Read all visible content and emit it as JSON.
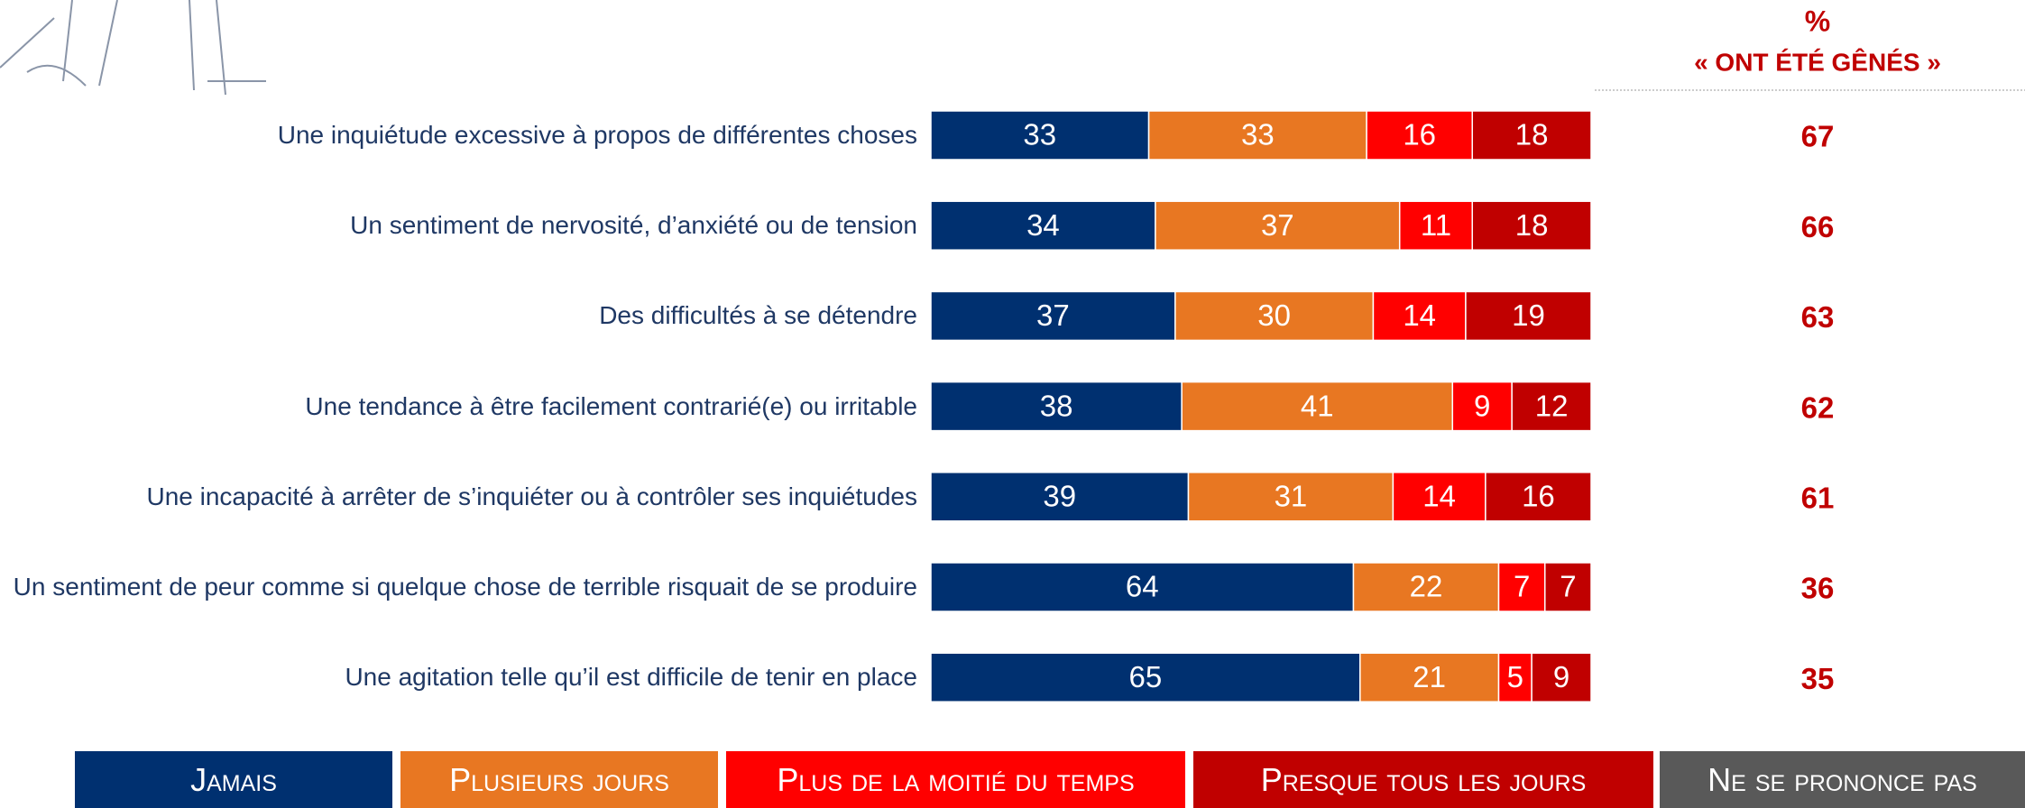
{
  "chart_data": {
    "type": "stacked-bar",
    "categories": [
      "Une inquiétude excessive à propos de différentes choses",
      "Un sentiment de nervosité, d’anxiété ou de tension",
      "Des difficultés à se détendre",
      "Une tendance à être facilement contrarié(e) ou irritable",
      "Une incapacité à arrêter de s’inquiéter ou à contrôler ses inquiétudes",
      "Un sentiment de peur comme si quelque chose de terrible risquait de se produire",
      "Une agitation telle qu’il est difficile de tenir en place"
    ],
    "series": [
      {
        "name": "Jamais",
        "color": "#003070",
        "values": [
          33,
          34,
          37,
          38,
          39,
          64,
          65
        ]
      },
      {
        "name": "Plusieurs jours",
        "color": "#e87722",
        "values": [
          33,
          37,
          30,
          41,
          31,
          22,
          21
        ]
      },
      {
        "name": "Plus de la moitié du temps",
        "color": "#ff0000",
        "values": [
          16,
          11,
          14,
          9,
          14,
          7,
          5
        ]
      },
      {
        "name": "Presque tous les jours",
        "color": "#c00000",
        "values": [
          18,
          18,
          19,
          12,
          16,
          7,
          9
        ]
      },
      {
        "name": "Ne se prononce pas",
        "color": "#595959",
        "values": [
          null,
          null,
          null,
          null,
          null,
          null,
          null
        ]
      }
    ],
    "xlim": [
      0,
      100
    ],
    "total_header": [
      "%",
      "« ONT ÉTÉ GÊNÉS »"
    ],
    "totals": [
      67,
      66,
      63,
      62,
      61,
      36,
      35
    ]
  }
}
